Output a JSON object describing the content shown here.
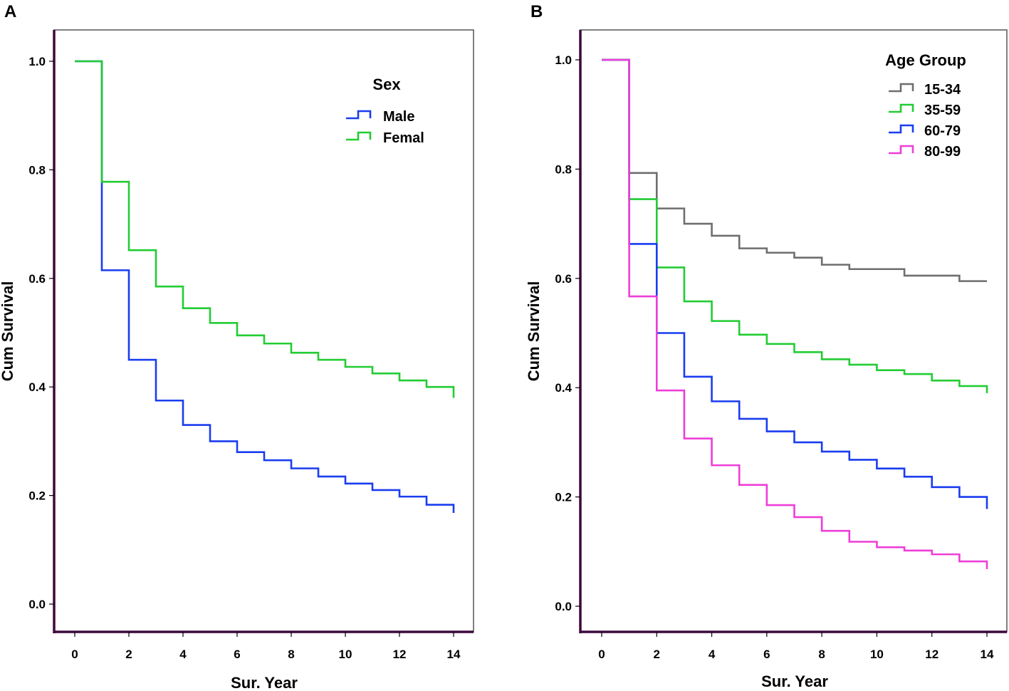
{
  "chart_data": [
    {
      "panel": "A",
      "type": "line",
      "step": true,
      "title": "",
      "xlabel": "Sur. Year",
      "ylabel": "Cum Survival",
      "xlim": [
        0,
        14
      ],
      "ylim": [
        0.0,
        1.0
      ],
      "xticks": [
        0,
        2,
        4,
        6,
        8,
        10,
        12,
        14
      ],
      "yticks": [
        0.0,
        0.2,
        0.4,
        0.6,
        0.8,
        1.0
      ],
      "ytick_labels": [
        "0.0",
        "0.2",
        "0.4",
        "0.6",
        "0.8",
        "1.0"
      ],
      "legend_title": "Sex",
      "legend_position": "top-right",
      "series": [
        {
          "name": "Male",
          "color": "#1a3df0",
          "x": [
            0,
            1,
            2,
            3,
            4,
            5,
            6,
            7,
            8,
            9,
            10,
            11,
            12,
            13,
            14
          ],
          "values": [
            1.0,
            0.615,
            0.45,
            0.375,
            0.33,
            0.3,
            0.28,
            0.265,
            0.25,
            0.235,
            0.222,
            0.21,
            0.198,
            0.183,
            0.168
          ]
        },
        {
          "name": "Femal",
          "color": "#22cc33",
          "x": [
            0,
            1,
            2,
            3,
            4,
            5,
            6,
            7,
            8,
            9,
            10,
            11,
            12,
            13,
            14
          ],
          "values": [
            1.0,
            0.778,
            0.652,
            0.585,
            0.545,
            0.518,
            0.495,
            0.48,
            0.463,
            0.45,
            0.437,
            0.425,
            0.412,
            0.4,
            0.38
          ]
        }
      ]
    },
    {
      "panel": "B",
      "type": "line",
      "step": true,
      "title": "",
      "xlabel": "Sur. Year",
      "ylabel": "Cum Survival",
      "xlim": [
        0,
        14
      ],
      "ylim": [
        0.0,
        1.0
      ],
      "xticks": [
        0,
        2,
        4,
        6,
        8,
        10,
        12,
        14
      ],
      "yticks": [
        0.0,
        0.2,
        0.4,
        0.6,
        0.8,
        1.0
      ],
      "ytick_labels": [
        "0.0",
        "0.2",
        "0.4",
        "0.6",
        "0.8",
        "1.0"
      ],
      "legend_title": "Age Group",
      "legend_position": "top-right",
      "series": [
        {
          "name": "15-34",
          "color": "#6e6e6e",
          "x": [
            0,
            1,
            2,
            3,
            4,
            5,
            6,
            7,
            8,
            9,
            10,
            11,
            12,
            13,
            14
          ],
          "values": [
            1.0,
            0.793,
            0.728,
            0.7,
            0.678,
            0.655,
            0.647,
            0.638,
            0.625,
            0.617,
            0.617,
            0.605,
            0.605,
            0.595,
            0.595
          ]
        },
        {
          "name": "35-59",
          "color": "#22cc33",
          "x": [
            0,
            1,
            2,
            3,
            4,
            5,
            6,
            7,
            8,
            9,
            10,
            11,
            12,
            13,
            14
          ],
          "values": [
            1.0,
            0.745,
            0.62,
            0.558,
            0.522,
            0.497,
            0.48,
            0.465,
            0.452,
            0.442,
            0.432,
            0.425,
            0.413,
            0.403,
            0.39
          ]
        },
        {
          "name": "60-79",
          "color": "#1a3df0",
          "x": [
            0,
            1,
            2,
            3,
            4,
            5,
            6,
            7,
            8,
            9,
            10,
            11,
            12,
            13,
            14
          ],
          "values": [
            1.0,
            0.663,
            0.5,
            0.42,
            0.375,
            0.343,
            0.32,
            0.3,
            0.283,
            0.268,
            0.252,
            0.237,
            0.218,
            0.2,
            0.178
          ]
        },
        {
          "name": "80-99",
          "color": "#ee3ed8",
          "x": [
            0,
            1,
            2,
            3,
            4,
            5,
            6,
            7,
            8,
            9,
            10,
            11,
            12,
            13,
            14
          ],
          "values": [
            1.0,
            0.567,
            0.395,
            0.307,
            0.258,
            0.222,
            0.185,
            0.163,
            0.138,
            0.118,
            0.108,
            0.102,
            0.095,
            0.082,
            0.068
          ]
        }
      ]
    }
  ]
}
